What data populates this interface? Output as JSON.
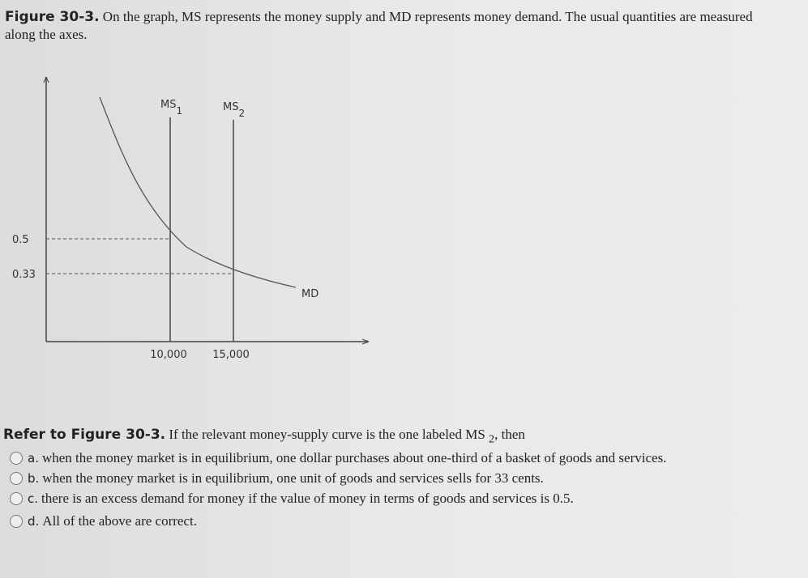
{
  "caption": {
    "label": "Figure 30-3.",
    "text": "On the graph, MS represents the money supply and MD represents money demand. The usual quantities are measured along the axes."
  },
  "figure": {
    "ms1": {
      "text": "MS",
      "sub": "1"
    },
    "ms2": {
      "text": "MS",
      "sub": "2"
    },
    "md": "MD",
    "y_labels": [
      "0.5",
      "0.33"
    ],
    "x_labels": [
      "10,000",
      "15,000"
    ]
  },
  "question": {
    "ref": "Refer to Figure 30-3.",
    "text": "If the relevant money-supply curve is the one labeled MS",
    "sub": "2",
    "tail": ", then",
    "options": [
      {
        "letter": "a.",
        "text": "when the money market is in equilibrium, one dollar purchases about one-third of a basket of goods and services."
      },
      {
        "letter": "b.",
        "text": "when the money market is in equilibrium, one unit of goods and services sells for 33 cents."
      },
      {
        "letter": "c.",
        "text": "there is an excess demand for money if the value of money in terms of goods and services is 0.5."
      },
      {
        "letter": "d.",
        "text": "All of the above are correct."
      }
    ]
  }
}
